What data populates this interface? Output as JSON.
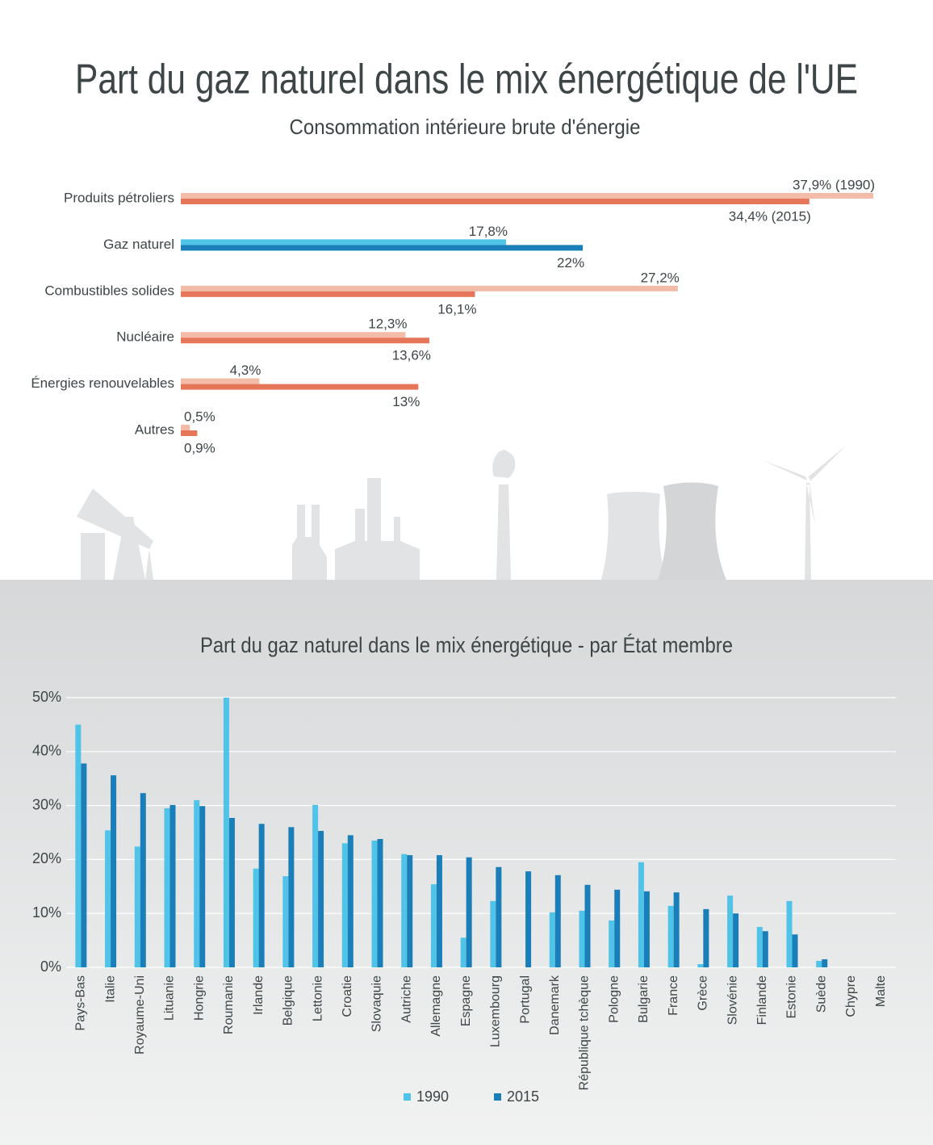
{
  "chart_data": [
    {
      "type": "bar",
      "orientation": "horizontal",
      "title": "Part du gaz naturel dans le mix énergétique de l'UE",
      "subtitle": "Consommation intérieure brute d'énergie",
      "categories": [
        "Produits pétroliers",
        "Gaz naturel",
        "Combustibles solides",
        "Nucléaire",
        "Énergies renouvelables",
        "Autres"
      ],
      "series": [
        {
          "colors": [
            "#f3bca9",
            "#4fc3e8",
            "#f3bca9",
            "#f3bca9",
            "#f3bca9",
            "#f3bca9"
          ],
          "values": [
            37.9,
            17.8,
            27.2,
            12.3,
            4.3,
            0.5
          ],
          "value_labels": [
            "37,9% (1990)",
            "17,8%",
            "27,2%",
            "12,3%",
            "4,3%",
            "0,5%"
          ]
        },
        {
          "colors": [
            "#e6765a",
            "#1a7fb8",
            "#e6765a",
            "#e6765a",
            "#e6765a",
            "#e6765a"
          ],
          "values": [
            34.4,
            22,
            16.1,
            13.6,
            13,
            0.9
          ],
          "value_labels": [
            "34,4% (2015)",
            "22%",
            "16,1%",
            "13,6%",
            "13%",
            "0,9%"
          ]
        }
      ]
    },
    {
      "type": "bar",
      "title": "Part du gaz naturel dans le mix énergétique - par État membre",
      "categories": [
        "Pays-Bas",
        "Italie",
        "Royaume-Uni",
        "Lituanie",
        "Hongrie",
        "Roumanie",
        "Irlande",
        "Belgique",
        "Lettonie",
        "Croatie",
        "Slovaquie",
        "Autriche",
        "Allemagne",
        "Espagne",
        "Luxembourg",
        "Portugal",
        "Danemark",
        "République tchèque",
        "Pologne",
        "Bulgarie",
        "France",
        "Grèce",
        "Slovénie",
        "Finlande",
        "Estonie",
        "Suède",
        "Chypre",
        "Malte"
      ],
      "series": [
        {
          "name": "1990",
          "color": "#4fc3e8",
          "values": [
            45,
            25.4,
            22.4,
            29.5,
            31,
            50,
            18.3,
            16.9,
            30.1,
            23,
            23.5,
            21,
            15.4,
            5.5,
            12.3,
            0,
            10.2,
            10.5,
            8.7,
            19.5,
            11.4,
            0.6,
            13.3,
            7.5,
            12.3,
            1.2,
            0,
            0
          ]
        },
        {
          "name": "2015",
          "color": "#1a7fb8",
          "values": [
            37.8,
            35.6,
            32.3,
            30.1,
            29.9,
            27.7,
            26.6,
            26,
            25.3,
            24.5,
            23.8,
            20.8,
            20.8,
            20.4,
            18.6,
            17.8,
            17.1,
            15.3,
            14.4,
            14.1,
            13.9,
            10.8,
            10,
            6.7,
            6.1,
            1.5,
            0,
            0
          ]
        }
      ],
      "ylim": [
        0,
        50
      ],
      "yticks": [
        {
          "value": 0,
          "label": "0%"
        },
        {
          "value": 10,
          "label": "10%"
        },
        {
          "value": 20,
          "label": "20%"
        },
        {
          "value": 30,
          "label": "30%"
        },
        {
          "value": 40,
          "label": "40%"
        },
        {
          "value": 50,
          "label": "50%"
        }
      ],
      "grid": true,
      "legend": "bottom"
    }
  ]
}
